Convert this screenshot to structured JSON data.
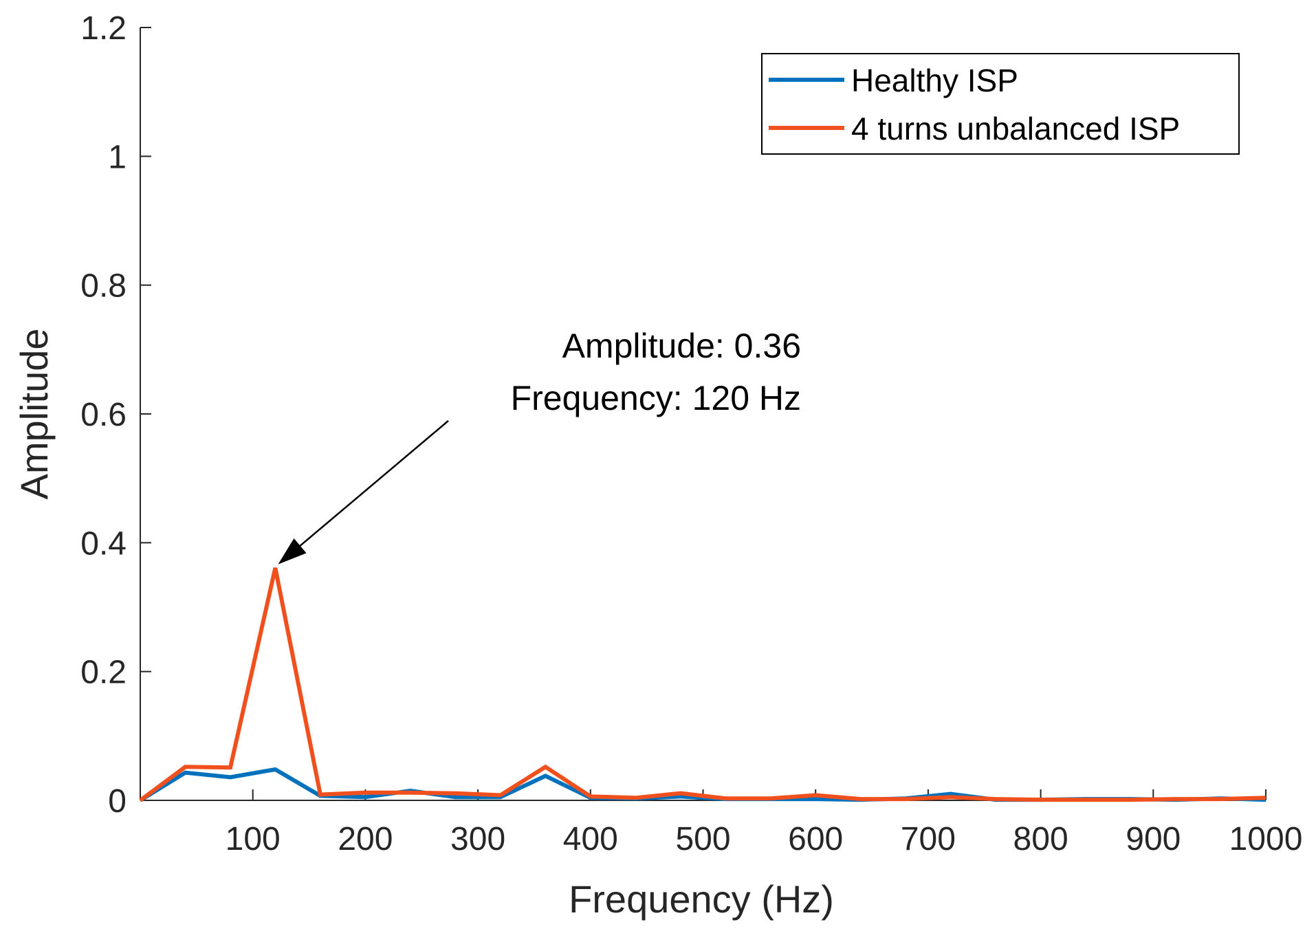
{
  "chart_data": {
    "type": "line",
    "title": "",
    "xlabel": "Frequency (Hz)",
    "ylabel": "Amplitude",
    "xlim": [
      0,
      1000
    ],
    "ylim": [
      0,
      1.2
    ],
    "xticks": [
      100,
      200,
      300,
      400,
      500,
      600,
      700,
      800,
      900,
      1000
    ],
    "xtick_labels": [
      "100",
      "200",
      "300",
      "400",
      "500",
      "600",
      "700",
      "800",
      "900",
      "1000"
    ],
    "yticks": [
      0,
      0.2,
      0.4,
      0.6,
      0.8,
      1,
      1.2
    ],
    "ytick_labels": [
      "0",
      "0.2",
      "0.4",
      "0.6",
      "0.8",
      "1",
      "1.2"
    ],
    "grid": false,
    "legend_position": "top-right",
    "x": [
      0,
      40,
      80,
      120,
      160,
      200,
      240,
      280,
      320,
      360,
      400,
      440,
      480,
      520,
      560,
      600,
      640,
      680,
      720,
      760,
      800,
      840,
      880,
      920,
      960,
      1000
    ],
    "series": [
      {
        "name": "Healthy ISP",
        "color": "#0072BD",
        "values": [
          0,
          0.043,
          0.036,
          0.048,
          0.007,
          0.005,
          0.015,
          0.005,
          0.005,
          0.038,
          0.004,
          0.003,
          0.006,
          0.002,
          0.002,
          0.002,
          0.001,
          0.003,
          0.01,
          0.001,
          0.001,
          0.002,
          0.002,
          0.001,
          0.003,
          0.001
        ]
      },
      {
        "name": "4 turns unbalanced ISP",
        "color": "#F0501E",
        "values": [
          0,
          0.052,
          0.051,
          0.361,
          0.009,
          0.012,
          0.012,
          0.011,
          0.008,
          0.052,
          0.006,
          0.004,
          0.011,
          0.003,
          0.003,
          0.008,
          0.002,
          0.002,
          0.005,
          0.002,
          0.001,
          0.001,
          0.001,
          0.002,
          0.002,
          0.004
        ]
      }
    ],
    "annotation": {
      "lines": [
        "Amplitude: 0.36",
        "Frequency: 120 Hz"
      ],
      "target_x": 120,
      "target_y": 0.36
    }
  }
}
